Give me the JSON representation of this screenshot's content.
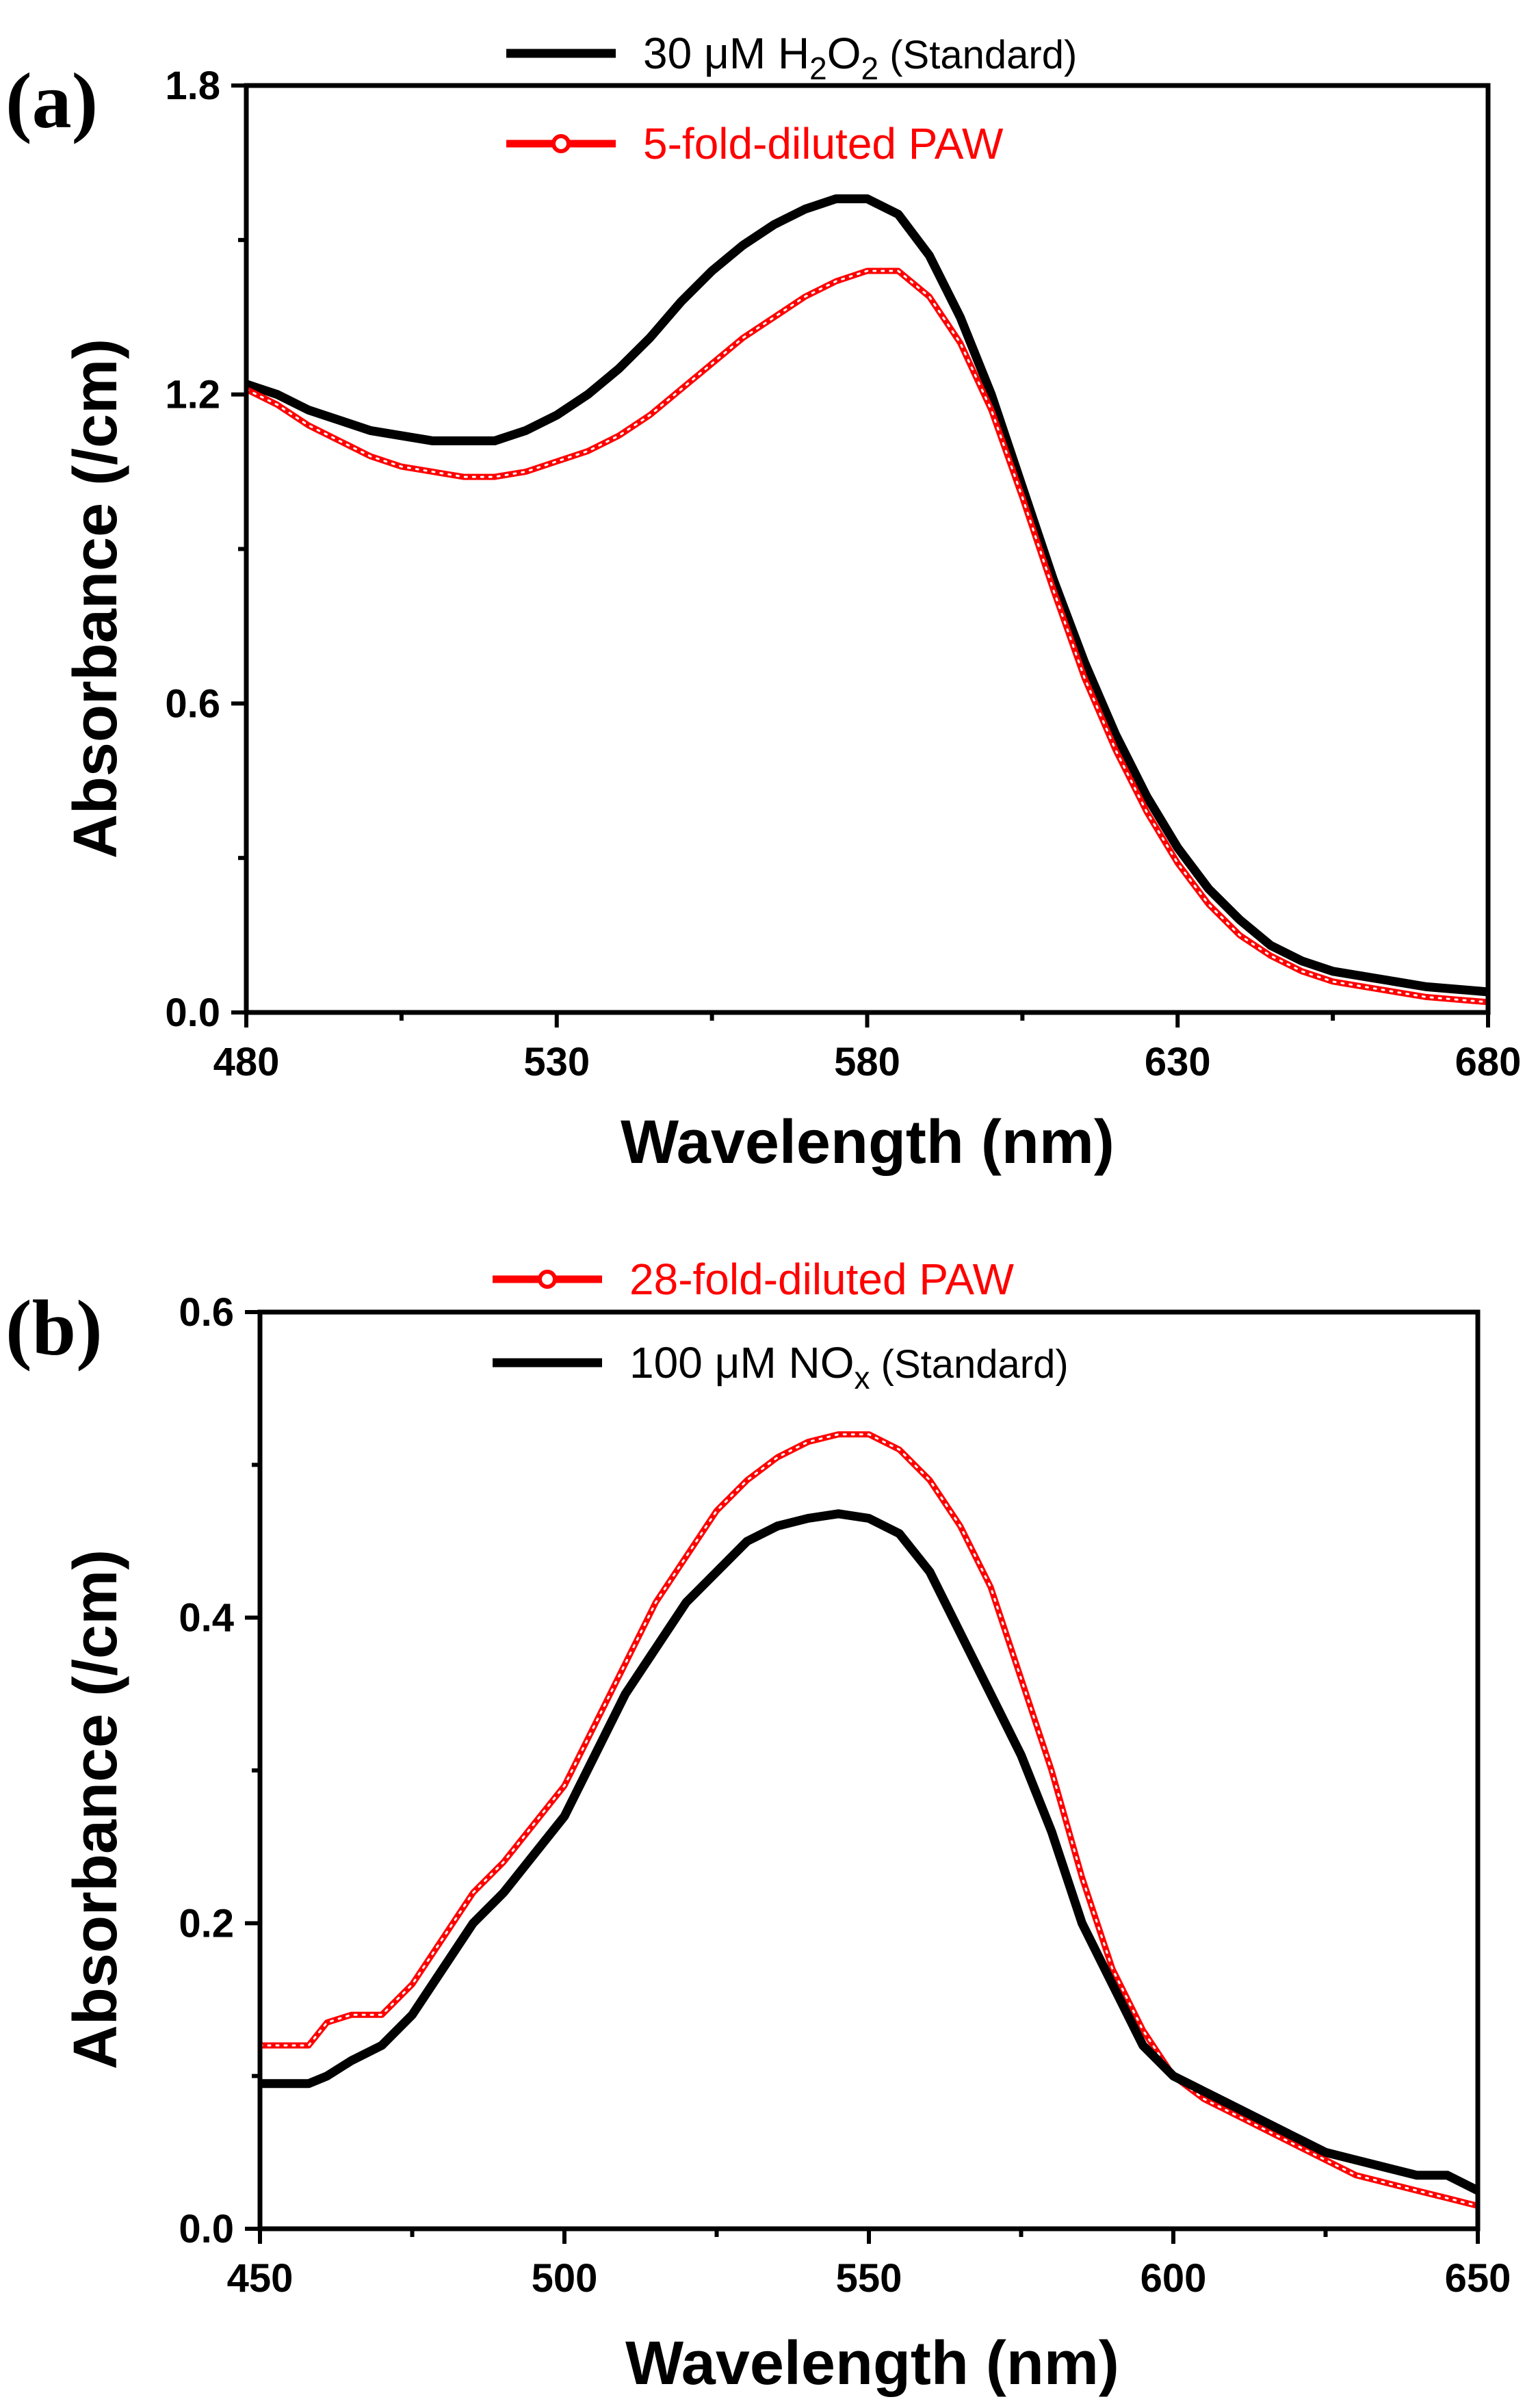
{
  "chart_data": [
    {
      "type": "line",
      "panel_label": "(a)",
      "title": "",
      "xlabel": "Wavelength (nm)",
      "ylabel": "Absorbance (/cm)",
      "xlim": [
        480,
        680
      ],
      "ylim": [
        0.0,
        1.8
      ],
      "xticks": [
        480,
        530,
        580,
        630,
        680
      ],
      "xtick_labels": [
        "480",
        "530",
        "580",
        "630",
        "680"
      ],
      "yticks": [
        0.0,
        0.6,
        1.2,
        1.8
      ],
      "ytick_labels": [
        "0.0",
        "0.6",
        "1.2",
        "1.8"
      ],
      "grid": false,
      "legend_position": "top-center",
      "series": [
        {
          "name": "30 μM H2O2 (Standard)",
          "legend": {
            "pre": "30 μM H",
            "sub1": "2",
            "mid": "O",
            "sub2": "2",
            "paren": " (Standard)"
          },
          "color": "#000000",
          "style": "line",
          "x": [
            480,
            485,
            490,
            495,
            500,
            505,
            510,
            515,
            520,
            525,
            530,
            535,
            540,
            545,
            550,
            555,
            560,
            565,
            570,
            575,
            580,
            585,
            590,
            595,
            600,
            605,
            610,
            615,
            620,
            625,
            630,
            635,
            640,
            645,
            650,
            655,
            660,
            665,
            670,
            675,
            680
          ],
          "y": [
            1.22,
            1.2,
            1.17,
            1.15,
            1.13,
            1.12,
            1.11,
            1.11,
            1.11,
            1.13,
            1.16,
            1.2,
            1.25,
            1.31,
            1.38,
            1.44,
            1.49,
            1.53,
            1.56,
            1.58,
            1.58,
            1.55,
            1.47,
            1.35,
            1.2,
            1.02,
            0.84,
            0.68,
            0.54,
            0.42,
            0.32,
            0.24,
            0.18,
            0.13,
            0.1,
            0.08,
            0.07,
            0.06,
            0.05,
            0.045,
            0.04
          ]
        },
        {
          "name": "5-fold-diluted PAW",
          "legend": {
            "text": "5-fold-diluted PAW"
          },
          "color": "#ff0000",
          "style": "line-circle",
          "x": [
            480,
            485,
            490,
            495,
            500,
            505,
            510,
            515,
            520,
            525,
            530,
            535,
            540,
            545,
            550,
            555,
            560,
            565,
            570,
            575,
            580,
            585,
            590,
            595,
            600,
            605,
            610,
            615,
            620,
            625,
            630,
            635,
            640,
            645,
            650,
            655,
            660,
            665,
            670,
            675,
            680
          ],
          "y": [
            1.21,
            1.18,
            1.14,
            1.11,
            1.08,
            1.06,
            1.05,
            1.04,
            1.04,
            1.05,
            1.07,
            1.09,
            1.12,
            1.16,
            1.21,
            1.26,
            1.31,
            1.35,
            1.39,
            1.42,
            1.44,
            1.44,
            1.39,
            1.3,
            1.17,
            1.0,
            0.82,
            0.65,
            0.51,
            0.39,
            0.29,
            0.21,
            0.15,
            0.11,
            0.08,
            0.06,
            0.05,
            0.04,
            0.03,
            0.025,
            0.02
          ]
        }
      ]
    },
    {
      "type": "line",
      "panel_label": "(b)",
      "title": "",
      "xlabel": "Wavelength (nm)",
      "ylabel": "Absorbance (/cm)",
      "xlim": [
        450,
        650
      ],
      "ylim": [
        0.0,
        0.6
      ],
      "xticks": [
        450,
        500,
        550,
        600,
        650
      ],
      "xtick_labels": [
        "450",
        "500",
        "550",
        "600",
        "650"
      ],
      "yticks": [
        0.0,
        0.2,
        0.4,
        0.6
      ],
      "ytick_labels": [
        "0.0",
        "0.2",
        "0.4",
        "0.6"
      ],
      "grid": false,
      "legend_position": "top-center",
      "series": [
        {
          "name": "28-fold-diluted PAW",
          "legend": {
            "text": "28-fold-diluted PAW"
          },
          "color": "#ff0000",
          "style": "line-circle",
          "x": [
            450,
            455,
            458,
            461,
            465,
            470,
            475,
            480,
            485,
            490,
            495,
            500,
            505,
            510,
            515,
            520,
            525,
            530,
            535,
            540,
            545,
            550,
            555,
            560,
            565,
            570,
            575,
            580,
            585,
            590,
            595,
            600,
            605,
            610,
            615,
            620,
            625,
            630,
            635,
            640,
            645,
            650
          ],
          "y": [
            0.12,
            0.12,
            0.12,
            0.135,
            0.14,
            0.14,
            0.16,
            0.19,
            0.22,
            0.24,
            0.265,
            0.29,
            0.33,
            0.37,
            0.41,
            0.44,
            0.47,
            0.49,
            0.505,
            0.515,
            0.52,
            0.52,
            0.51,
            0.49,
            0.46,
            0.42,
            0.36,
            0.3,
            0.23,
            0.17,
            0.13,
            0.1,
            0.085,
            0.075,
            0.065,
            0.055,
            0.045,
            0.035,
            0.03,
            0.025,
            0.02,
            0.015
          ]
        },
        {
          "name": "100 μM NOx (Standard)",
          "legend": {
            "pre": "100 μM NO",
            "sub1": "x",
            "paren": " (Standard)"
          },
          "color": "#000000",
          "style": "line",
          "x": [
            450,
            455,
            458,
            461,
            465,
            470,
            475,
            480,
            485,
            490,
            495,
            500,
            505,
            510,
            515,
            520,
            525,
            530,
            535,
            540,
            545,
            550,
            555,
            560,
            565,
            570,
            575,
            580,
            585,
            590,
            595,
            600,
            605,
            610,
            615,
            620,
            625,
            630,
            635,
            640,
            645,
            650
          ],
          "y": [
            0.095,
            0.095,
            0.095,
            0.1,
            0.11,
            0.12,
            0.14,
            0.17,
            0.2,
            0.22,
            0.245,
            0.27,
            0.31,
            0.35,
            0.38,
            0.41,
            0.43,
            0.45,
            0.46,
            0.465,
            0.468,
            0.465,
            0.455,
            0.43,
            0.39,
            0.35,
            0.31,
            0.26,
            0.2,
            0.16,
            0.12,
            0.1,
            0.09,
            0.08,
            0.07,
            0.06,
            0.05,
            0.045,
            0.04,
            0.035,
            0.035,
            0.025
          ]
        }
      ]
    }
  ]
}
